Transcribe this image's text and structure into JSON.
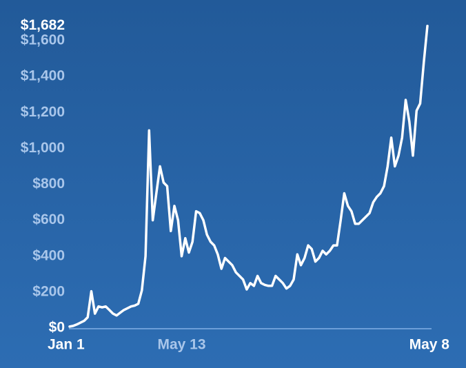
{
  "chart_data": {
    "type": "line",
    "categories": [
      "Jan 1",
      null,
      null,
      null,
      null,
      null,
      null,
      null,
      null,
      null,
      null,
      null,
      null,
      null,
      null,
      null,
      null,
      null,
      null,
      null,
      null,
      null,
      null,
      null,
      null,
      null,
      null,
      null,
      null,
      null,
      null,
      "May 13",
      null,
      null,
      null,
      null,
      null,
      null,
      null,
      null,
      null,
      null,
      null,
      null,
      null,
      null,
      null,
      null,
      null,
      null,
      null,
      null,
      null,
      null,
      null,
      null,
      null,
      null,
      null,
      null,
      null,
      null,
      null,
      null,
      null,
      null,
      null,
      null,
      null,
      null,
      null,
      null,
      null,
      null,
      null,
      null,
      null,
      null,
      null,
      null,
      null,
      null,
      null,
      null,
      null,
      null,
      null,
      null,
      null,
      null,
      null,
      null,
      null,
      null,
      null,
      null,
      null,
      null,
      null,
      "May 8"
    ],
    "series": [
      {
        "color": "#ffffff",
        "values": [
          8,
          12,
          20,
          30,
          40,
          60,
          205,
          80,
          120,
          115,
          120,
          100,
          80,
          70,
          85,
          100,
          110,
          120,
          125,
          135,
          210,
          400,
          1100,
          600,
          750,
          900,
          810,
          790,
          540,
          680,
          600,
          400,
          500,
          420,
          480,
          650,
          640,
          600,
          520,
          480,
          460,
          410,
          330,
          390,
          370,
          350,
          310,
          290,
          270,
          215,
          250,
          235,
          290,
          250,
          240,
          235,
          235,
          290,
          270,
          250,
          220,
          235,
          270,
          410,
          350,
          390,
          460,
          440,
          370,
          390,
          430,
          410,
          430,
          460,
          460,
          600,
          750,
          680,
          650,
          580,
          580,
          600,
          620,
          640,
          700,
          730,
          750,
          790,
          900,
          1060,
          900,
          960,
          1060,
          1270,
          1150,
          960,
          1210,
          1250,
          1480,
          1682
        ]
      }
    ],
    "ylim": [
      0,
      1682
    ],
    "yticks": [
      {
        "value": 0,
        "label": "$0"
      },
      {
        "value": 200,
        "label": "$200"
      },
      {
        "value": 400,
        "label": "$400"
      },
      {
        "value": 600,
        "label": "$600"
      },
      {
        "value": 800,
        "label": "$800"
      },
      {
        "value": 1000,
        "label": "$1,000"
      },
      {
        "value": 1200,
        "label": "$1,200"
      },
      {
        "value": 1400,
        "label": "$1,400"
      },
      {
        "value": 1600,
        "label": "$1,600"
      },
      {
        "value": 1682,
        "label": "$1,682"
      }
    ],
    "grid": false
  }
}
